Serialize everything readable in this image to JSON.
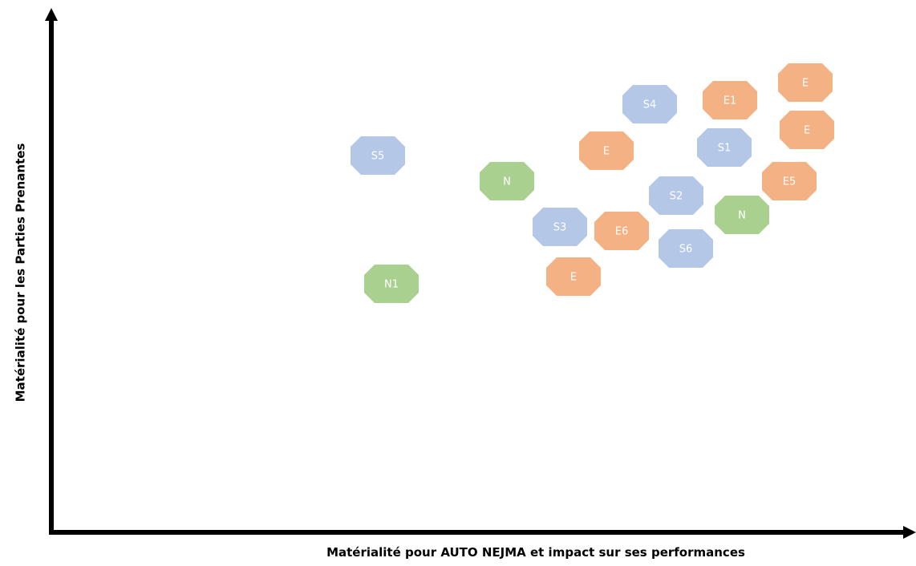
{
  "x_axis_label": "Matérialité pour AUTO NEJMA et impact sur ses performances",
  "y_axis_label": "Matérialité pour les Parties Prenantes",
  "nodes": [
    {
      "label": "S4",
      "color": "#b4c7e7"
    },
    {
      "label": "E1",
      "color": "#f4b183"
    },
    {
      "label": "E",
      "color": "#f4b183"
    },
    {
      "label": "E",
      "color": "#f4b183"
    },
    {
      "label": "S1",
      "color": "#b4c7e7"
    },
    {
      "label": "E",
      "color": "#f4b183"
    },
    {
      "label": "S5",
      "color": "#b4c7e7"
    },
    {
      "label": "N",
      "color": "#a9d08e"
    },
    {
      "label": "E5",
      "color": "#f4b183"
    },
    {
      "label": "S2",
      "color": "#b4c7e7"
    },
    {
      "label": "N",
      "color": "#a9d08e"
    },
    {
      "label": "S3",
      "color": "#b4c7e7"
    },
    {
      "label": "E6",
      "color": "#f4b183"
    },
    {
      "label": "S6",
      "color": "#b4c7e7"
    },
    {
      "label": "E",
      "color": "#f4b183"
    },
    {
      "label": "N1",
      "color": "#a9d08e"
    }
  ]
}
